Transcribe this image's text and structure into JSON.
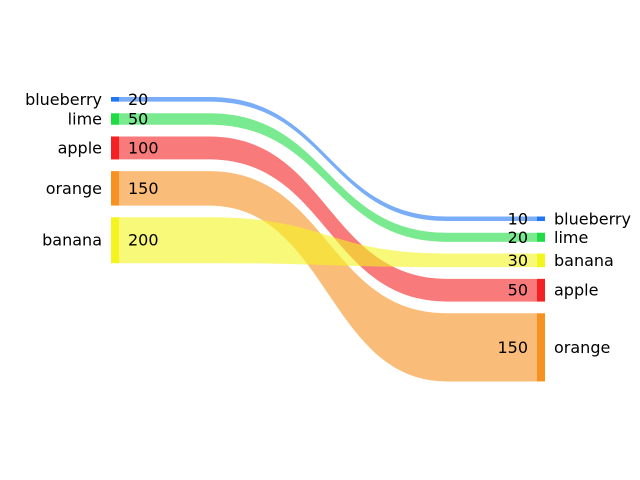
{
  "chart_data": {
    "type": "sankey",
    "title": "",
    "left_nodes": [
      {
        "name": "blueberry",
        "value": 20,
        "color": "#1f77f4"
      },
      {
        "name": "lime",
        "value": 50,
        "color": "#1fdc44"
      },
      {
        "name": "apple",
        "value": 100,
        "color": "#f42222"
      },
      {
        "name": "orange",
        "value": 150,
        "color": "#f7911f"
      },
      {
        "name": "banana",
        "value": 200,
        "color": "#f4f41f"
      }
    ],
    "right_nodes": [
      {
        "name": "blueberry",
        "value": 10,
        "color": "#1f77f4"
      },
      {
        "name": "lime",
        "value": 20,
        "color": "#1fdc44"
      },
      {
        "name": "banana",
        "value": 30,
        "color": "#f4f41f"
      },
      {
        "name": "apple",
        "value": 50,
        "color": "#f42222"
      },
      {
        "name": "orange",
        "value": 150,
        "color": "#f7911f"
      }
    ],
    "flows": [
      {
        "from": "blueberry",
        "to": "blueberry",
        "color": "#1f77f4"
      },
      {
        "from": "lime",
        "to": "lime",
        "color": "#1fdc44"
      },
      {
        "from": "apple",
        "to": "apple",
        "color": "#f42222"
      },
      {
        "from": "orange",
        "to": "orange",
        "color": "#f7911f"
      },
      {
        "from": "banana",
        "to": "banana",
        "color": "#f4f41f"
      }
    ]
  }
}
